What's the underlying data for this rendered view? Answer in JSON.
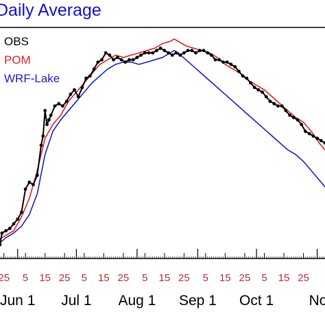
{
  "chart_data": {
    "type": "line",
    "title": "Daily Average",
    "xlabel": "",
    "ylabel": "",
    "xlim": [
      "2012-05-23",
      "2012-11-05"
    ],
    "ylim": [
      0,
      100
    ],
    "legend_placement": "top-left",
    "day_ticks": [
      {
        "date": "2012-05-25",
        "label": "25"
      },
      {
        "date": "2012-06-05",
        "label": "5"
      },
      {
        "date": "2012-06-15",
        "label": "15"
      },
      {
        "date": "2012-06-25",
        "label": "25"
      },
      {
        "date": "2012-07-05",
        "label": "5"
      },
      {
        "date": "2012-07-15",
        "label": "15"
      },
      {
        "date": "2012-07-25",
        "label": "25"
      },
      {
        "date": "2012-08-05",
        "label": "5"
      },
      {
        "date": "2012-08-15",
        "label": "15"
      },
      {
        "date": "2012-08-25",
        "label": "25"
      },
      {
        "date": "2012-09-05",
        "label": "5"
      },
      {
        "date": "2012-09-15",
        "label": "15"
      },
      {
        "date": "2012-09-25",
        "label": "25"
      },
      {
        "date": "2012-10-05",
        "label": "5"
      },
      {
        "date": "2012-10-15",
        "label": "15"
      },
      {
        "date": "2012-10-25",
        "label": "25"
      }
    ],
    "month_ticks": [
      {
        "date": "2012-06-01",
        "label": "Jun 1"
      },
      {
        "date": "2012-07-01",
        "label": "Jul 1"
      },
      {
        "date": "2012-08-01",
        "label": "Aug 1"
      },
      {
        "date": "2012-09-01",
        "label": "Sep 1"
      },
      {
        "date": "2012-10-01",
        "label": "Oct 1"
      },
      {
        "date": "2012-11-01",
        "label": "No"
      }
    ],
    "series": [
      {
        "name": "OBS",
        "color": "#000000",
        "markers": true,
        "points": [
          [
            "2012-05-22",
            9
          ],
          [
            "2012-05-23",
            6
          ],
          [
            "2012-05-24",
            11
          ],
          [
            "2012-05-26",
            12
          ],
          [
            "2012-05-28",
            13
          ],
          [
            "2012-05-30",
            15
          ],
          [
            "2012-06-01",
            17
          ],
          [
            "2012-06-03",
            20
          ],
          [
            "2012-06-05",
            30
          ],
          [
            "2012-06-07",
            33
          ],
          [
            "2012-06-09",
            32
          ],
          [
            "2012-06-11",
            36
          ],
          [
            "2012-06-13",
            49
          ],
          [
            "2012-06-14",
            53
          ],
          [
            "2012-06-15",
            64
          ],
          [
            "2012-06-16",
            58
          ],
          [
            "2012-06-17",
            60
          ],
          [
            "2012-06-18",
            62
          ],
          [
            "2012-06-20",
            66
          ],
          [
            "2012-06-22",
            67
          ],
          [
            "2012-06-24",
            66
          ],
          [
            "2012-06-26",
            68
          ],
          [
            "2012-06-28",
            71
          ],
          [
            "2012-06-30",
            73
          ],
          [
            "2012-07-02",
            70
          ],
          [
            "2012-07-04",
            74
          ],
          [
            "2012-07-06",
            78
          ],
          [
            "2012-07-08",
            79
          ],
          [
            "2012-07-10",
            82
          ],
          [
            "2012-07-12",
            85
          ],
          [
            "2012-07-14",
            86
          ],
          [
            "2012-07-16",
            89
          ],
          [
            "2012-07-18",
            88
          ],
          [
            "2012-07-20",
            86
          ],
          [
            "2012-07-22",
            87
          ],
          [
            "2012-07-24",
            86
          ],
          [
            "2012-07-26",
            85
          ],
          [
            "2012-07-28",
            86
          ],
          [
            "2012-07-30",
            86
          ],
          [
            "2012-08-01",
            87
          ],
          [
            "2012-08-03",
            88
          ],
          [
            "2012-08-05",
            89
          ],
          [
            "2012-08-07",
            89
          ],
          [
            "2012-08-09",
            89
          ],
          [
            "2012-08-11",
            90
          ],
          [
            "2012-08-13",
            91
          ],
          [
            "2012-08-15",
            90
          ],
          [
            "2012-08-17",
            89
          ],
          [
            "2012-08-19",
            88
          ],
          [
            "2012-08-21",
            89
          ],
          [
            "2012-08-23",
            88
          ],
          [
            "2012-08-25",
            89
          ],
          [
            "2012-08-27",
            90
          ],
          [
            "2012-08-29",
            90
          ],
          [
            "2012-08-31",
            89
          ],
          [
            "2012-09-02",
            90
          ],
          [
            "2012-09-04",
            90
          ],
          [
            "2012-09-06",
            89
          ],
          [
            "2012-09-08",
            88
          ],
          [
            "2012-09-10",
            86
          ],
          [
            "2012-09-12",
            86
          ],
          [
            "2012-09-14",
            85
          ],
          [
            "2012-09-16",
            85
          ],
          [
            "2012-09-18",
            84
          ],
          [
            "2012-09-20",
            83
          ],
          [
            "2012-09-22",
            81
          ],
          [
            "2012-09-24",
            79
          ],
          [
            "2012-09-26",
            78
          ],
          [
            "2012-09-28",
            76
          ],
          [
            "2012-09-30",
            74
          ],
          [
            "2012-10-02",
            73
          ],
          [
            "2012-10-04",
            72
          ],
          [
            "2012-10-06",
            70
          ],
          [
            "2012-10-08",
            68
          ],
          [
            "2012-10-10",
            67
          ],
          [
            "2012-10-12",
            66
          ],
          [
            "2012-10-14",
            66
          ],
          [
            "2012-10-16",
            64
          ],
          [
            "2012-10-18",
            62
          ],
          [
            "2012-10-20",
            61
          ],
          [
            "2012-10-22",
            60
          ],
          [
            "2012-10-24",
            58
          ],
          [
            "2012-10-26",
            55
          ],
          [
            "2012-10-28",
            54
          ],
          [
            "2012-10-30",
            53
          ],
          [
            "2012-11-01",
            52
          ],
          [
            "2012-11-03",
            51
          ],
          [
            "2012-11-05",
            50
          ]
        ]
      },
      {
        "name": "POM",
        "color": "#e02020",
        "markers": false,
        "points": [
          [
            "2012-05-22",
            8
          ],
          [
            "2012-05-26",
            10
          ],
          [
            "2012-05-30",
            12
          ],
          [
            "2012-06-03",
            18
          ],
          [
            "2012-06-07",
            26
          ],
          [
            "2012-06-11",
            38
          ],
          [
            "2012-06-15",
            52
          ],
          [
            "2012-06-19",
            58
          ],
          [
            "2012-06-23",
            62
          ],
          [
            "2012-06-27",
            68
          ],
          [
            "2012-07-01",
            72
          ],
          [
            "2012-07-05",
            76
          ],
          [
            "2012-07-09",
            80
          ],
          [
            "2012-07-13",
            84
          ],
          [
            "2012-07-17",
            86
          ],
          [
            "2012-07-21",
            88
          ],
          [
            "2012-07-25",
            87
          ],
          [
            "2012-07-29",
            88
          ],
          [
            "2012-08-02",
            89
          ],
          [
            "2012-08-06",
            90
          ],
          [
            "2012-08-10",
            91
          ],
          [
            "2012-08-14",
            93
          ],
          [
            "2012-08-18",
            94
          ],
          [
            "2012-08-20",
            95
          ],
          [
            "2012-08-22",
            94
          ],
          [
            "2012-08-26",
            92
          ],
          [
            "2012-08-30",
            91
          ],
          [
            "2012-09-03",
            90
          ],
          [
            "2012-09-07",
            89
          ],
          [
            "2012-09-11",
            87
          ],
          [
            "2012-09-15",
            84
          ],
          [
            "2012-09-19",
            82
          ],
          [
            "2012-09-23",
            80
          ],
          [
            "2012-09-27",
            77
          ],
          [
            "2012-10-01",
            75
          ],
          [
            "2012-10-05",
            73
          ],
          [
            "2012-10-09",
            70
          ],
          [
            "2012-10-13",
            67
          ],
          [
            "2012-10-17",
            64
          ],
          [
            "2012-10-21",
            61
          ],
          [
            "2012-10-25",
            59
          ],
          [
            "2012-10-29",
            55
          ],
          [
            "2012-11-02",
            50
          ],
          [
            "2012-11-05",
            47
          ]
        ]
      },
      {
        "name": "WRF-Lake",
        "color": "#1a1acc",
        "markers": false,
        "points": [
          [
            "2012-05-22",
            6
          ],
          [
            "2012-05-26",
            9
          ],
          [
            "2012-05-30",
            11
          ],
          [
            "2012-06-03",
            14
          ],
          [
            "2012-06-07",
            19
          ],
          [
            "2012-06-11",
            28
          ],
          [
            "2012-06-15",
            45
          ],
          [
            "2012-06-19",
            55
          ],
          [
            "2012-06-23",
            60
          ],
          [
            "2012-06-27",
            64
          ],
          [
            "2012-07-01",
            68
          ],
          [
            "2012-07-05",
            72
          ],
          [
            "2012-07-09",
            76
          ],
          [
            "2012-07-13",
            79
          ],
          [
            "2012-07-17",
            82
          ],
          [
            "2012-07-21",
            84
          ],
          [
            "2012-07-25",
            85
          ],
          [
            "2012-07-29",
            85
          ],
          [
            "2012-08-02",
            84
          ],
          [
            "2012-08-06",
            85
          ],
          [
            "2012-08-10",
            86
          ],
          [
            "2012-08-14",
            87
          ],
          [
            "2012-08-18",
            89
          ],
          [
            "2012-08-20",
            90
          ],
          [
            "2012-08-22",
            89
          ],
          [
            "2012-08-26",
            86
          ],
          [
            "2012-08-30",
            83
          ],
          [
            "2012-09-03",
            80
          ],
          [
            "2012-09-07",
            77
          ],
          [
            "2012-09-11",
            74
          ],
          [
            "2012-09-15",
            71
          ],
          [
            "2012-09-19",
            68
          ],
          [
            "2012-09-23",
            65
          ],
          [
            "2012-09-27",
            62
          ],
          [
            "2012-10-01",
            59
          ],
          [
            "2012-10-05",
            56
          ],
          [
            "2012-10-09",
            53
          ],
          [
            "2012-10-13",
            50
          ],
          [
            "2012-10-17",
            47
          ],
          [
            "2012-10-21",
            45
          ],
          [
            "2012-10-25",
            42
          ],
          [
            "2012-10-29",
            38
          ],
          [
            "2012-11-02",
            34
          ],
          [
            "2012-11-05",
            31
          ]
        ]
      }
    ]
  }
}
